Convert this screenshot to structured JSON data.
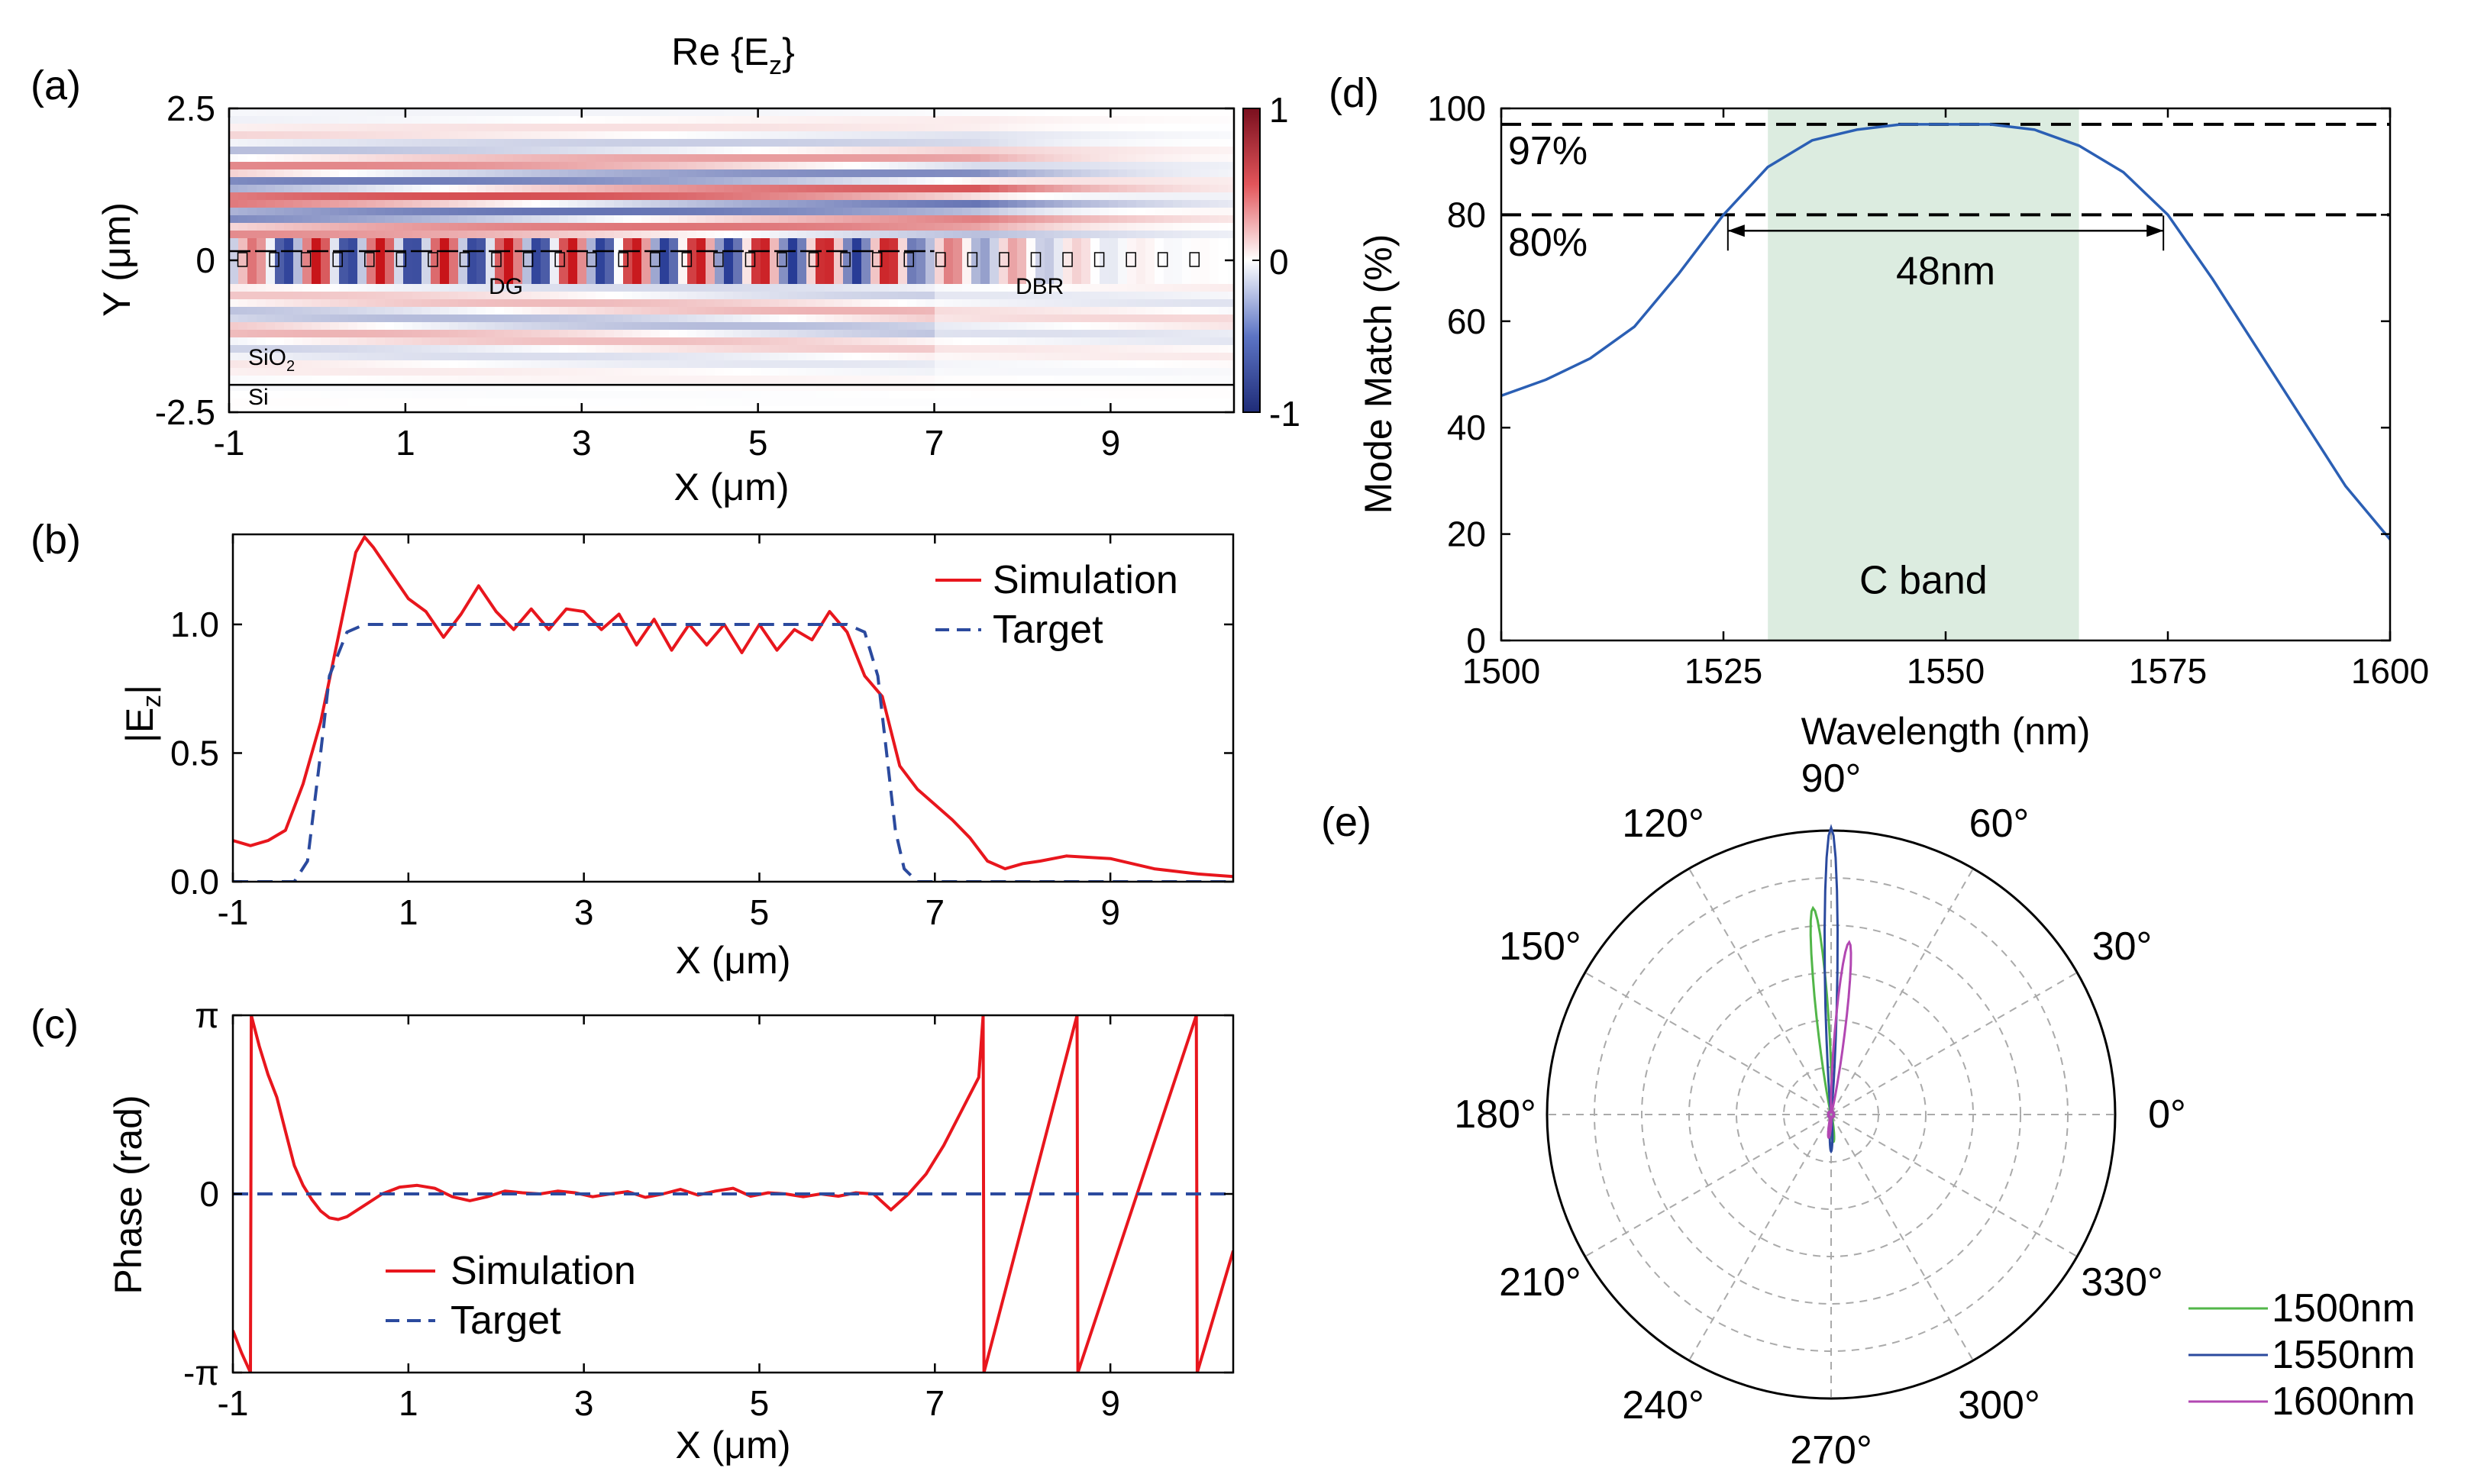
{
  "panels": {
    "a": "(a)",
    "b": "(b)",
    "c": "(c)",
    "d": "(d)",
    "e": "(e)"
  },
  "chart_data": [
    {
      "id": "a",
      "type": "heatmap",
      "title": "Re {E",
      "title_sub": "z",
      "title_end": "}",
      "xlabel": "X (μm)",
      "ylabel": "Y (μm)",
      "xticks": [
        "-1",
        "1",
        "3",
        "5",
        "7",
        "9"
      ],
      "xtick_values": [
        -1,
        1,
        3,
        5,
        7,
        9
      ],
      "yticks": [
        "2.5",
        "0",
        "-2.5"
      ],
      "ytick_values": [
        2.5,
        0,
        -2.5
      ],
      "xlim": [
        -1,
        10.4
      ],
      "ylim": [
        -2.5,
        2.5
      ],
      "colorbar": {
        "ticks": [
          "1",
          "0",
          "-1"
        ],
        "values": [
          1,
          0,
          -1
        ],
        "colors": [
          "#b2182b",
          "#ffffff",
          "#2c3e99"
        ]
      },
      "annotations": {
        "dg": "DG",
        "dbr": "DBR",
        "sio2": "SiO",
        "sio2_sub": "2",
        "si": "Si"
      },
      "substrate_y": -2.05,
      "waveguide_y": 0
    },
    {
      "id": "b",
      "type": "line",
      "xlabel": "X (μm)",
      "ylabel": "|E",
      "ylabel_sub": "z",
      "ylabel_end": "|",
      "xticks": [
        "-1",
        "1",
        "3",
        "5",
        "7",
        "9"
      ],
      "xtick_values": [
        -1,
        1,
        3,
        5,
        7,
        9
      ],
      "yticks": [
        "0.0",
        "0.5",
        "1.0"
      ],
      "ytick_values": [
        0,
        0.5,
        1.0
      ],
      "xlim": [
        -1,
        10.4
      ],
      "ylim": [
        0,
        1.35
      ],
      "legend": [
        "Simulation",
        "Target"
      ],
      "series": [
        {
          "name": "Simulation",
          "color": "#e8161d",
          "x": [
            -1.0,
            -0.8,
            -0.6,
            -0.4,
            -0.2,
            0.0,
            0.2,
            0.4,
            0.5,
            0.6,
            0.8,
            1.0,
            1.2,
            1.4,
            1.6,
            1.8,
            2.0,
            2.2,
            2.4,
            2.6,
            2.8,
            3.0,
            3.2,
            3.4,
            3.6,
            3.8,
            4.0,
            4.2,
            4.4,
            4.6,
            4.8,
            5.0,
            5.2,
            5.4,
            5.6,
            5.8,
            6.0,
            6.2,
            6.4,
            6.6,
            6.8,
            7.0,
            7.2,
            7.4,
            7.6,
            7.8,
            8.0,
            8.2,
            8.5,
            9.0,
            9.5,
            10.0,
            10.4
          ],
          "y": [
            0.16,
            0.14,
            0.16,
            0.2,
            0.38,
            0.62,
            0.95,
            1.28,
            1.34,
            1.3,
            1.2,
            1.1,
            1.05,
            0.95,
            1.04,
            1.15,
            1.05,
            0.98,
            1.06,
            0.98,
            1.06,
            1.05,
            0.98,
            1.04,
            0.92,
            1.02,
            0.9,
            1.0,
            0.92,
            1.0,
            0.89,
            1.0,
            0.9,
            0.98,
            0.94,
            1.05,
            0.97,
            0.8,
            0.72,
            0.45,
            0.36,
            0.3,
            0.24,
            0.17,
            0.08,
            0.05,
            0.07,
            0.08,
            0.1,
            0.09,
            0.05,
            0.03,
            0.02
          ]
        },
        {
          "name": "Target",
          "color": "#2b4a9e",
          "dashed": true,
          "x": [
            -1.0,
            -0.3,
            -0.15,
            0.0,
            0.1,
            0.3,
            0.5,
            6.0,
            6.2,
            6.35,
            6.45,
            6.55,
            6.65,
            6.8,
            10.4
          ],
          "y": [
            0,
            0,
            0.08,
            0.5,
            0.8,
            0.97,
            1.0,
            1.0,
            0.97,
            0.8,
            0.5,
            0.2,
            0.05,
            0,
            0
          ]
        }
      ]
    },
    {
      "id": "c",
      "type": "line",
      "xlabel": "X (μm)",
      "ylabel": "Phase (rad)",
      "xticks": [
        "-1",
        "1",
        "3",
        "5",
        "7",
        "9"
      ],
      "xtick_values": [
        -1,
        1,
        3,
        5,
        7,
        9
      ],
      "yticks": [
        "π",
        "0",
        "-π"
      ],
      "ytick_values": [
        3.1416,
        0,
        -3.1416
      ],
      "xlim": [
        -1,
        10.4
      ],
      "ylim": [
        -3.1416,
        3.1416
      ],
      "legend": [
        "Simulation",
        "Target"
      ],
      "series": [
        {
          "name": "Simulation",
          "color": "#e8161d",
          "x": [
            -1.0,
            -0.9,
            -0.8,
            -0.79,
            -0.7,
            -0.6,
            -0.5,
            -0.4,
            -0.3,
            -0.2,
            -0.1,
            0.0,
            0.1,
            0.2,
            0.3,
            0.5,
            0.7,
            0.9,
            1.1,
            1.3,
            1.5,
            1.7,
            1.9,
            2.1,
            2.3,
            2.5,
            2.7,
            2.9,
            3.1,
            3.3,
            3.5,
            3.7,
            3.9,
            4.1,
            4.3,
            4.5,
            4.7,
            4.9,
            5.1,
            5.3,
            5.5,
            5.7,
            5.9,
            6.1,
            6.3,
            6.5,
            6.7,
            6.9,
            7.1,
            7.3,
            7.5,
            7.55,
            7.56,
            8.62,
            8.63,
            9.98,
            9.99,
            10.4
          ],
          "y": [
            -2.4,
            -2.8,
            -3.14,
            3.14,
            2.6,
            2.1,
            1.7,
            1.1,
            0.5,
            0.15,
            -0.1,
            -0.3,
            -0.42,
            -0.45,
            -0.4,
            -0.2,
            0.0,
            0.12,
            0.15,
            0.1,
            -0.05,
            -0.12,
            -0.05,
            0.05,
            0.02,
            0.0,
            0.05,
            0.02,
            -0.05,
            0.0,
            0.04,
            -0.06,
            0.0,
            0.08,
            -0.02,
            0.05,
            0.1,
            -0.04,
            0.02,
            0.0,
            -0.05,
            0.0,
            -0.04,
            0.02,
            0.0,
            -0.28,
            0.0,
            0.35,
            0.85,
            1.45,
            2.05,
            3.14,
            -3.14,
            3.14,
            -3.14,
            3.14,
            -3.14,
            -1.0
          ]
        },
        {
          "name": "Target",
          "color": "#2b4a9e",
          "dashed": true,
          "x": [
            -1.0,
            10.4
          ],
          "y": [
            0,
            0
          ]
        }
      ]
    },
    {
      "id": "d",
      "type": "line",
      "xlabel": "Wavelength (nm)",
      "ylabel": "Mode Match (%)",
      "xticks": [
        "1500",
        "1525",
        "1550",
        "1575",
        "1600"
      ],
      "xtick_values": [
        1500,
        1525,
        1550,
        1575,
        1600
      ],
      "yticks": [
        "0",
        "20",
        "40",
        "60",
        "80",
        "100"
      ],
      "ytick_values": [
        0,
        20,
        40,
        60,
        80,
        100
      ],
      "xlim": [
        1500,
        1600
      ],
      "ylim": [
        0,
        100
      ],
      "shaded_band": {
        "from": 1530,
        "to": 1565,
        "label": "C band",
        "color": "#dcece0"
      },
      "reference_lines": [
        {
          "value": 97,
          "label": "97%"
        },
        {
          "value": 80,
          "label": "80%"
        }
      ],
      "bandwidth_annotation": {
        "from": 1525.5,
        "to": 1574.5,
        "y": 77,
        "label": "48nm"
      },
      "series": [
        {
          "name": "Mode Match",
          "color": "#2b5fb4",
          "x": [
            1500,
            1505,
            1510,
            1515,
            1520,
            1525,
            1530,
            1535,
            1540,
            1545,
            1550,
            1555,
            1560,
            1565,
            1570,
            1575,
            1580,
            1585,
            1590,
            1595,
            1600
          ],
          "y": [
            46,
            49,
            53,
            59,
            69,
            80,
            89,
            94,
            96,
            97,
            97,
            97,
            96,
            93,
            88,
            80,
            68,
            55,
            42,
            29,
            19
          ]
        }
      ]
    },
    {
      "id": "e",
      "type": "polar",
      "angle_ticks": [
        "0°",
        "30°",
        "60°",
        "90°",
        "120°",
        "150°",
        "180°",
        "210°",
        "240°",
        "270°",
        "300°",
        "330°"
      ],
      "angle_values": [
        0,
        30,
        60,
        90,
        120,
        150,
        180,
        210,
        240,
        270,
        300,
        330
      ],
      "radial_max": 1,
      "legend": [
        "1500nm",
        "1550nm",
        "1600nm"
      ],
      "series": [
        {
          "name": "1500nm",
          "color": "#52b649",
          "lobe_angle_deg": 95,
          "lobe_radius": 0.72,
          "lobe_width_deg": 4
        },
        {
          "name": "1550nm",
          "color": "#2b4a9e",
          "lobe_angle_deg": 90,
          "lobe_radius": 1.0,
          "lobe_width_deg": 3
        },
        {
          "name": "1600nm",
          "color": "#b247b2",
          "lobe_angle_deg": 84,
          "lobe_radius": 0.6,
          "lobe_width_deg": 4
        }
      ]
    }
  ]
}
